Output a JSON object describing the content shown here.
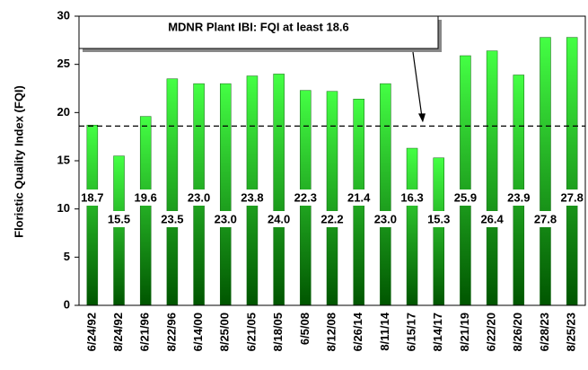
{
  "chart_data": {
    "type": "bar",
    "ylabel": "Floristic Quality Index (FQI)",
    "categories": [
      "6/24/92",
      "8/24/92",
      "6/21/96",
      "8/22/96",
      "6/14/00",
      "8/25/00",
      "6/21/05",
      "8/18/05",
      "6/5/08",
      "8/12/08",
      "6/26/14",
      "8/11/14",
      "6/15/17",
      "8/14/17",
      "8/21/19",
      "6/22/20",
      "8/26/20",
      "6/28/23",
      "8/25/23"
    ],
    "values": [
      18.7,
      15.5,
      19.6,
      23.5,
      23.0,
      23.0,
      23.8,
      24.0,
      22.3,
      22.2,
      21.4,
      23.0,
      16.3,
      15.3,
      25.9,
      26.4,
      23.9,
      27.8,
      27.8
    ],
    "value_labels": [
      "18.7",
      "15.5",
      "19.6",
      "23.5",
      "23.0",
      "23.0",
      "23.8",
      "24.0",
      "22.3",
      "22.2",
      "21.4",
      "23.0",
      "16.3",
      "15.3",
      "25.9",
      "26.4",
      "23.9",
      "27.8",
      "27.8"
    ],
    "color": "#22dd22",
    "ylim": [
      0,
      30
    ],
    "yticks": [
      0,
      5,
      10,
      15,
      20,
      25,
      30
    ],
    "reference_line": 18.6,
    "annotation": "MDNR Plant IBI:  FQI at least 18.6"
  }
}
